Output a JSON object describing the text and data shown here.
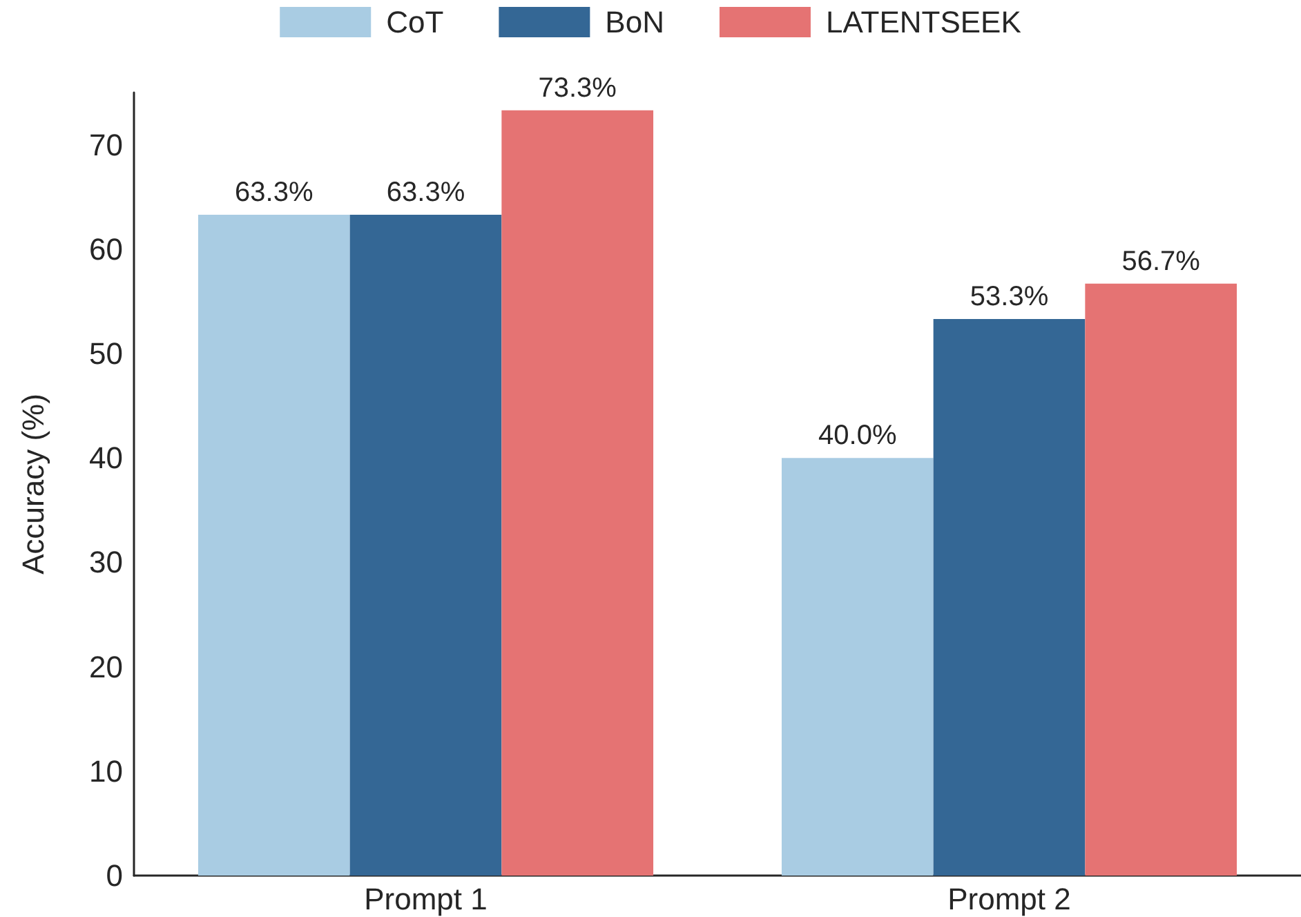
{
  "chart_data": {
    "type": "bar",
    "ylabel": "Accuracy (%)",
    "categories": [
      "Prompt 1",
      "Prompt 2"
    ],
    "series": [
      {
        "name": "CoT",
        "color": "#a9cce3",
        "values": [
          63.3,
          40.0
        ],
        "value_labels": [
          "63.3%",
          "40.0%"
        ]
      },
      {
        "name": "BoN",
        "color": "#346795",
        "values": [
          63.3,
          53.3
        ],
        "value_labels": [
          "63.3%",
          "53.3%"
        ]
      },
      {
        "name": "LATENTSEEK",
        "color": "#e57373",
        "values": [
          73.3,
          56.7
        ],
        "value_labels": [
          "73.3%",
          "56.7%"
        ]
      }
    ],
    "ylim": [
      0,
      75
    ],
    "yticks": [
      0,
      10,
      20,
      30,
      40,
      50,
      60,
      70
    ],
    "grid": false,
    "legend": "top"
  }
}
